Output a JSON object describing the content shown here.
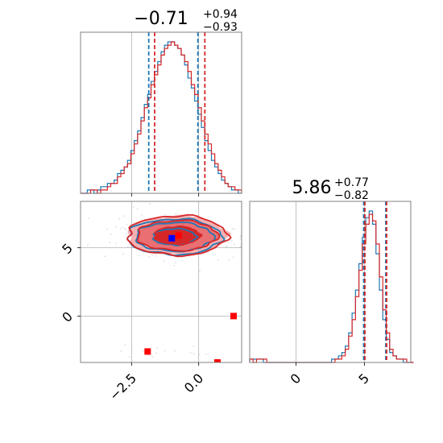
{
  "colors": {
    "series_a": "#1f77b4",
    "series_b": "#d62728",
    "grid": "#b0b0b0",
    "axes": "#808080",
    "fill_dark": "#d62728",
    "fill_light": "#f4a3a4",
    "marker_a": "#0000ff",
    "marker_b": "#ff0000"
  },
  "chart_data": [
    {
      "type": "histogram",
      "panel": "top-left",
      "title_value": "−0.71",
      "title_plus": "+0.94",
      "title_minus": "−0.93",
      "xlim": [
        -4.4,
        1.6
      ],
      "x_grid": [
        -2.5,
        0.0
      ],
      "bin_start": -4.4,
      "bin_width": 0.125,
      "series": [
        {
          "color": "#1f77b4",
          "counts": [
            0,
            0,
            1,
            1,
            0,
            1,
            2,
            2,
            3,
            3,
            4,
            6,
            7,
            8,
            10,
            13,
            16,
            19,
            23,
            27,
            30,
            34,
            37,
            40,
            43,
            45,
            46,
            46,
            45,
            44,
            42,
            39,
            35,
            32,
            28,
            24,
            20,
            16,
            13,
            10,
            8,
            6,
            4,
            3,
            2,
            1,
            1,
            0
          ],
          "quantile_lines": [
            -1.86,
            -0.03
          ]
        },
        {
          "color": "#d62728",
          "counts": [
            0,
            0,
            0,
            1,
            1,
            0,
            1,
            1,
            2,
            3,
            3,
            5,
            6,
            8,
            9,
            12,
            15,
            18,
            22,
            26,
            29,
            33,
            36,
            39,
            42,
            44,
            45,
            46,
            45,
            44,
            42,
            40,
            37,
            33,
            30,
            26,
            22,
            18,
            15,
            12,
            9,
            7,
            5,
            3,
            2,
            2,
            1,
            1
          ],
          "quantile_lines": [
            -1.64,
            0.23
          ]
        }
      ]
    },
    {
      "type": "contour",
      "panel": "bottom-left",
      "xlim": [
        -4.4,
        1.6
      ],
      "ylim": [
        -3.4,
        8.4
      ],
      "x_ticks": [
        -2.5,
        0.0
      ],
      "x_tick_labels": [
        "−2.5",
        "0.0"
      ],
      "y_ticks": [
        0,
        5
      ],
      "y_tick_labels": [
        "0",
        "5"
      ],
      "series": [
        {
          "color": "#1f77b4",
          "center": [
            -0.9,
            5.8
          ],
          "levels_sigma": [
            [
              0.8,
              0.6
            ],
            [
              1.45,
              1.05
            ],
            [
              1.75,
              1.3
            ]
          ]
        },
        {
          "color": "#d62728",
          "center": [
            -0.8,
            5.9
          ],
          "levels_sigma": [
            [
              0.85,
              0.65
            ],
            [
              1.5,
              1.1
            ],
            [
              1.85,
              1.45
            ]
          ]
        }
      ],
      "markers": [
        {
          "color": "#0000ff",
          "x": -1.0,
          "y": 5.7
        },
        {
          "color": "#ff0000",
          "x": -0.75,
          "y": 5.9
        },
        {
          "color": "#ff0000",
          "x": 1.3,
          "y": 0.0
        },
        {
          "color": "#ff0000",
          "x": -1.9,
          "y": -2.6
        },
        {
          "color": "#ff0000",
          "x": 0.7,
          "y": -3.4
        }
      ]
    },
    {
      "type": "histogram",
      "panel": "bottom-right",
      "title_value": "5.86",
      "title_plus": "+0.77",
      "title_minus": "−0.82",
      "xlim": [
        -3.4,
        8.4
      ],
      "x_ticks": [
        0,
        5
      ],
      "x_tick_labels": [
        "0",
        "5"
      ],
      "bin_start": -3.4,
      "bin_width": 0.25,
      "series": [
        {
          "color": "#1f77b4",
          "counts": [
            1,
            1,
            1,
            1,
            0,
            0,
            0,
            0,
            0,
            0,
            0,
            0,
            0,
            0,
            0,
            0,
            0,
            0,
            0,
            0,
            0,
            0,
            0,
            0,
            1,
            1,
            2,
            3,
            5,
            9,
            15,
            22,
            30,
            38,
            44,
            46,
            42,
            33,
            22,
            13,
            7,
            3,
            2,
            1,
            1,
            0,
            0,
            0
          ],
          "quantile_lines": [
            4.95,
            6.57
          ]
        },
        {
          "color": "#d62728",
          "counts": [
            1,
            0,
            1,
            1,
            1,
            0,
            0,
            0,
            0,
            0,
            0,
            0,
            0,
            0,
            0,
            0,
            0,
            0,
            0,
            0,
            0,
            0,
            0,
            0,
            0,
            1,
            1,
            2,
            4,
            8,
            13,
            20,
            28,
            36,
            42,
            45,
            43,
            36,
            26,
            16,
            9,
            4,
            2,
            1,
            1,
            1,
            0,
            0
          ],
          "quantile_lines": [
            5.04,
            6.63
          ]
        }
      ]
    }
  ]
}
